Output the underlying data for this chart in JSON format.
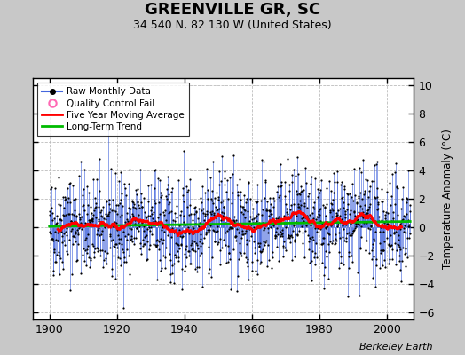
{
  "title": "GREENVILLE GR, SC",
  "subtitle": "34.540 N, 82.130 W (United States)",
  "ylabel": "Temperature Anomaly (°C)",
  "credit": "Berkeley Earth",
  "xlim": [
    1895,
    2008
  ],
  "ylim": [
    -6.5,
    10.5
  ],
  "yticks": [
    -6,
    -4,
    -2,
    0,
    2,
    4,
    6,
    8,
    10
  ],
  "xticks": [
    1900,
    1920,
    1940,
    1960,
    1980,
    2000
  ],
  "fig_bg_color": "#c8c8c8",
  "plot_bg_color": "#ffffff",
  "raw_line_color": "#4466dd",
  "raw_dot_color": "#000000",
  "moving_avg_color": "#ff0000",
  "trend_color": "#00bb00",
  "seed": 42,
  "n_years": 107,
  "start_year": 1900
}
